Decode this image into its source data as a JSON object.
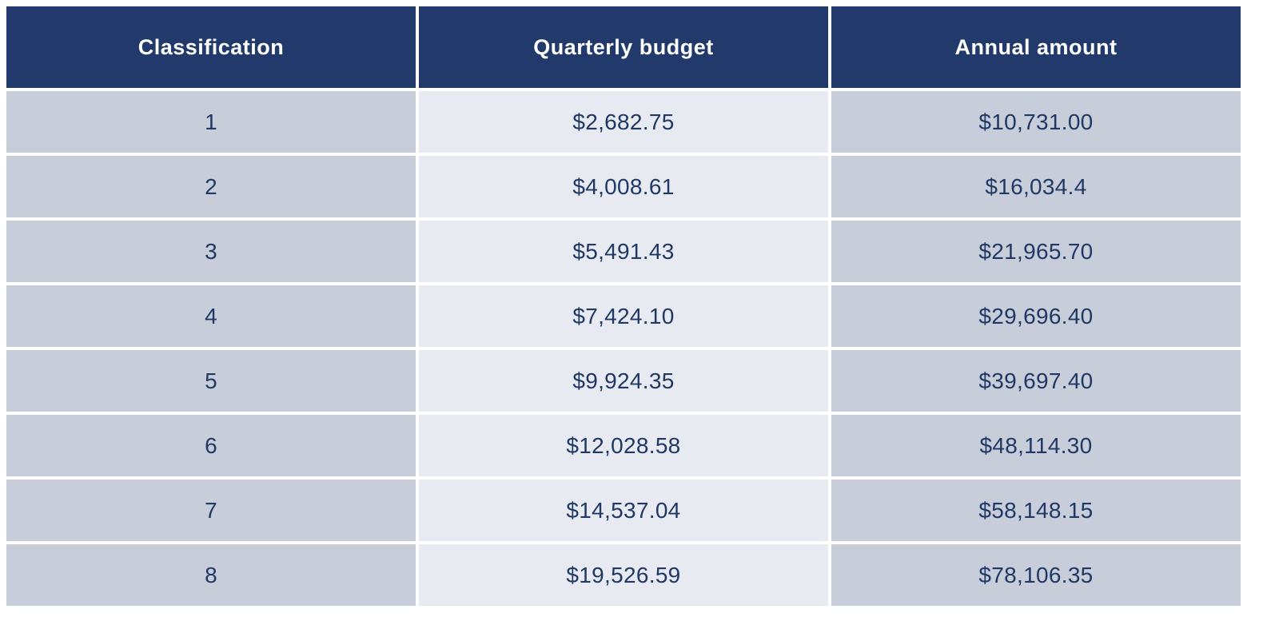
{
  "chart_data": {
    "type": "table",
    "title": "",
    "columns": [
      "Classification",
      "Quarterly budget",
      "Annual amount"
    ],
    "rows": [
      {
        "classification": "1",
        "quarterly_budget": "$2,682.75",
        "annual_amount": "$10,731.00"
      },
      {
        "classification": "2",
        "quarterly_budget": "$4,008.61",
        "annual_amount": "$16,034.4"
      },
      {
        "classification": "3",
        "quarterly_budget": "$5,491.43",
        "annual_amount": "$21,965.70"
      },
      {
        "classification": "4",
        "quarterly_budget": "$7,424.10",
        "annual_amount": "$29,696.40"
      },
      {
        "classification": "5",
        "quarterly_budget": "$9,924.35",
        "annual_amount": "$39,697.40"
      },
      {
        "classification": "6",
        "quarterly_budget": "$12,028.58",
        "annual_amount": "$48,114.30"
      },
      {
        "classification": "7",
        "quarterly_budget": "$14,537.04",
        "annual_amount": "$58,148.15"
      },
      {
        "classification": "8",
        "quarterly_budget": "$19,526.59",
        "annual_amount": "$78,106.35"
      }
    ]
  },
  "table": {
    "headers": {
      "classification": "Classification",
      "quarterly_budget": "Quarterly budget",
      "annual_amount": "Annual amount"
    },
    "rows": [
      {
        "classification": "1",
        "quarterly": "$2,682.75",
        "annual": "$10,731.00"
      },
      {
        "classification": "2",
        "quarterly": "$4,008.61",
        "annual": "$16,034.4"
      },
      {
        "classification": "3",
        "quarterly": "$5,491.43",
        "annual": "$21,965.70"
      },
      {
        "classification": "4",
        "quarterly": "$7,424.10",
        "annual": "$29,696.40"
      },
      {
        "classification": "5",
        "quarterly": "$9,924.35",
        "annual": "$39,697.40"
      },
      {
        "classification": "6",
        "quarterly": "$12,028.58",
        "annual": "$48,114.30"
      },
      {
        "classification": "7",
        "quarterly": "$14,537.04",
        "annual": "$58,148.15"
      },
      {
        "classification": "8",
        "quarterly": "$19,526.59",
        "annual": "$78,106.35"
      }
    ]
  },
  "colors": {
    "header_background": "#21396b",
    "header_text": "#ffffff",
    "odd_column_cell_background": "#c7cdd9",
    "middle_column_cell_background": "#e8eaf1",
    "cell_text": "#1f3864",
    "gutter": "#ffffff"
  }
}
